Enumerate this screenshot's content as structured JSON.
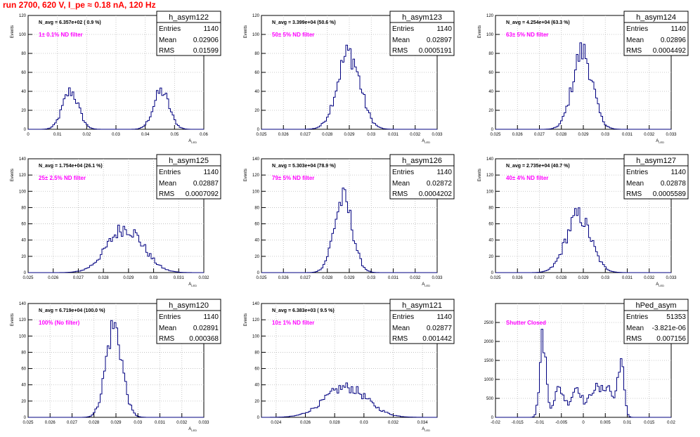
{
  "header": {
    "title": "run 2700,   620 V, I_pe ≈ 0.18 nA, 120 Hz"
  },
  "colors": {
    "hist": "#000080",
    "note": "#ff00ff",
    "title": "#ff0000",
    "grid": "#bbbbbb"
  },
  "chart_data": [
    {
      "type": "histogram",
      "name": "h_asym122",
      "stats": {
        "entries_label": "Entries",
        "entries": "1140",
        "mean_label": "Mean",
        "mean": "0.02906",
        "rms_label": "RMS",
        "rms": "0.01599"
      },
      "navg_label": "N_avg = 6.357e+02 ( 0.9 %)",
      "note": "1± 0.1% ND filter",
      "ylabel": "Events",
      "xlabel": "A_LED",
      "xlim": [
        0,
        0.06
      ],
      "ylim": [
        0,
        120
      ],
      "xticks": [
        "0",
        "0.01",
        "0.02",
        "0.03",
        "0.04",
        "0.05",
        "0.06"
      ],
      "yticks": [
        "0",
        "20",
        "40",
        "60",
        "80",
        "100",
        "120"
      ],
      "peaks": [
        {
          "mu": 0.0145,
          "sigma": 0.0027,
          "height": 40
        },
        {
          "mu": 0.0455,
          "sigma": 0.0027,
          "height": 40
        }
      ]
    },
    {
      "type": "histogram",
      "name": "h_asym123",
      "stats": {
        "entries_label": "Entries",
        "entries": "1140",
        "mean_label": "Mean",
        "mean": "0.02897",
        "rms_label": "RMS",
        "rms": "0.0005191"
      },
      "navg_label": "N_avg = 3.399e+04 (50.6 %)",
      "note": "50± 5% ND filter",
      "ylabel": "Events",
      "xlabel": "A_LED",
      "xlim": [
        0.025,
        0.033
      ],
      "ylim": [
        0,
        120
      ],
      "xticks": [
        "0.025",
        "0.026",
        "0.027",
        "0.028",
        "0.029",
        "0.03",
        "0.031",
        "0.032",
        "0.033"
      ],
      "yticks": [
        "0",
        "20",
        "40",
        "60",
        "80",
        "100",
        "120"
      ],
      "peaks": [
        {
          "mu": 0.02897,
          "sigma": 0.00052,
          "height": 80
        }
      ]
    },
    {
      "type": "histogram",
      "name": "h_asym124",
      "stats": {
        "entries_label": "Entries",
        "entries": "1140",
        "mean_label": "Mean",
        "mean": "0.02896",
        "rms_label": "RMS",
        "rms": "0.0004492"
      },
      "navg_label": "N_avg = 4.254e+04 (63.3 %)",
      "note": "63± 5% ND filter",
      "ylabel": "Events",
      "xlabel": "A_LED",
      "xlim": [
        0.025,
        0.033
      ],
      "ylim": [
        0,
        120
      ],
      "xticks": [
        "0.025",
        "0.026",
        "0.027",
        "0.028",
        "0.029",
        "0.03",
        "0.031",
        "0.032",
        "0.033"
      ],
      "yticks": [
        "0",
        "20",
        "40",
        "60",
        "80",
        "100",
        "120"
      ],
      "peaks": [
        {
          "mu": 0.02896,
          "sigma": 0.00045,
          "height": 82
        }
      ]
    },
    {
      "type": "histogram",
      "name": "h_asym125",
      "stats": {
        "entries_label": "Entries",
        "entries": "1140",
        "mean_label": "Mean",
        "mean": "0.02887",
        "rms_label": "RMS",
        "rms": "0.0007092"
      },
      "navg_label": "N_avg = 1.754e+04 (26.1 %)",
      "note": "25± 2.5% ND filter",
      "ylabel": "Events",
      "xlabel": "A_LED",
      "xlim": [
        0.025,
        0.032
      ],
      "ylim": [
        0,
        140
      ],
      "xticks": [
        "0.025",
        "0.026",
        "0.027",
        "0.028",
        "0.029",
        "0.03",
        "0.031",
        "0.032"
      ],
      "yticks": [
        "0",
        "20",
        "40",
        "60",
        "80",
        "100",
        "120",
        "140"
      ],
      "peaks": [
        {
          "mu": 0.02887,
          "sigma": 0.00071,
          "height": 55
        }
      ]
    },
    {
      "type": "histogram",
      "name": "h_asym126",
      "stats": {
        "entries_label": "Entries",
        "entries": "1140",
        "mean_label": "Mean",
        "mean": "0.02872",
        "rms_label": "RMS",
        "rms": "0.0004202"
      },
      "navg_label": "N_avg = 5.303e+04 (78.9 %)",
      "note": "79± 5% ND filter",
      "ylabel": "Events",
      "xlabel": "A_LED",
      "xlim": [
        0.025,
        0.033
      ],
      "ylim": [
        0,
        140
      ],
      "xticks": [
        "0.025",
        "0.026",
        "0.027",
        "0.028",
        "0.029",
        "0.03",
        "0.031",
        "0.032",
        "0.033"
      ],
      "yticks": [
        "0",
        "20",
        "40",
        "60",
        "80",
        "100",
        "120",
        "140"
      ],
      "peaks": [
        {
          "mu": 0.02872,
          "sigma": 0.00042,
          "height": 90
        }
      ]
    },
    {
      "type": "histogram",
      "name": "h_asym127",
      "stats": {
        "entries_label": "Entries",
        "entries": "1140",
        "mean_label": "Mean",
        "mean": "0.02878",
        "rms_label": "RMS",
        "rms": "0.0005589"
      },
      "navg_label": "N_avg = 2.735e+04 (40.7 %)",
      "note": "40± 4% ND filter",
      "ylabel": "Events",
      "xlabel": "A_LED",
      "xlim": [
        0.025,
        0.033
      ],
      "ylim": [
        0,
        140
      ],
      "xticks": [
        "0.025",
        "0.026",
        "0.027",
        "0.028",
        "0.029",
        "0.03",
        "0.031",
        "0.032",
        "0.033"
      ],
      "yticks": [
        "0",
        "20",
        "40",
        "60",
        "80",
        "100",
        "120",
        "140"
      ],
      "peaks": [
        {
          "mu": 0.02878,
          "sigma": 0.00056,
          "height": 70
        }
      ]
    },
    {
      "type": "histogram",
      "name": "h_asym120",
      "stats": {
        "entries_label": "Entries",
        "entries": "1140",
        "mean_label": "Mean",
        "mean": "0.02891",
        "rms_label": "RMS",
        "rms": "0.000368"
      },
      "navg_label": "N_avg = 6.719e+04 (100.0 %)",
      "note": "100% (No filter)",
      "ylabel": "Events",
      "xlabel": "A_LED",
      "xlim": [
        0.025,
        0.033
      ],
      "ylim": [
        0,
        140
      ],
      "xticks": [
        "0.025",
        "0.026",
        "0.027",
        "0.028",
        "0.029",
        "0.03",
        "0.031",
        "0.032",
        "0.033"
      ],
      "yticks": [
        "0",
        "20",
        "40",
        "60",
        "80",
        "100",
        "120",
        "140"
      ],
      "peaks": [
        {
          "mu": 0.02891,
          "sigma": 0.00037,
          "height": 112
        }
      ]
    },
    {
      "type": "histogram",
      "name": "h_asym121",
      "stats": {
        "entries_label": "Entries",
        "entries": "1140",
        "mean_label": "Mean",
        "mean": "0.02877",
        "rms_label": "RMS",
        "rms": "0.001442"
      },
      "navg_label": "N_avg = 6.383e+03 ( 9.5 %)",
      "note": "10± 1% ND filter",
      "ylabel": "Events",
      "xlabel": "A_LED",
      "xlim": [
        0.023,
        0.035
      ],
      "ylim": [
        0,
        140
      ],
      "xticks": [
        "0.024",
        "0.026",
        "0.028",
        "0.03",
        "0.032",
        "0.034"
      ],
      "yticks": [
        "0",
        "20",
        "40",
        "60",
        "80",
        "100",
        "120",
        "140"
      ],
      "peaks": [
        {
          "mu": 0.02877,
          "sigma": 0.00144,
          "height": 37
        }
      ]
    },
    {
      "type": "histogram",
      "name": "hPed_asym",
      "stats": {
        "entries_label": "Entries",
        "entries": "51353",
        "mean_label": "Mean",
        "mean": "-3.821e-06",
        "rms_label": "RMS",
        "rms": "0.007156"
      },
      "navg_label": "",
      "note": "Shutter Closed",
      "ylabel": "",
      "xlabel": "",
      "xlim": [
        -0.02,
        0.02
      ],
      "ylim": [
        0,
        3000
      ],
      "xticks": [
        "-0.02",
        "-0.015",
        "-0.01",
        "-0.005",
        "0",
        "0.005",
        "0.01",
        "0.015",
        "0.02"
      ],
      "yticks": [
        "0",
        "500",
        "1000",
        "1500",
        "2000",
        "2500"
      ],
      "peaks": [
        {
          "mu": -0.0092,
          "sigma": 0.0007,
          "height": 2100
        },
        {
          "mu": -0.0055,
          "sigma": 0.0012,
          "height": 750
        },
        {
          "mu": -0.0015,
          "sigma": 0.0012,
          "height": 800
        },
        {
          "mu": 0.0025,
          "sigma": 0.0012,
          "height": 750
        },
        {
          "mu": 0.0055,
          "sigma": 0.0012,
          "height": 800
        },
        {
          "mu": 0.0085,
          "sigma": 0.0007,
          "height": 1500
        }
      ]
    }
  ]
}
